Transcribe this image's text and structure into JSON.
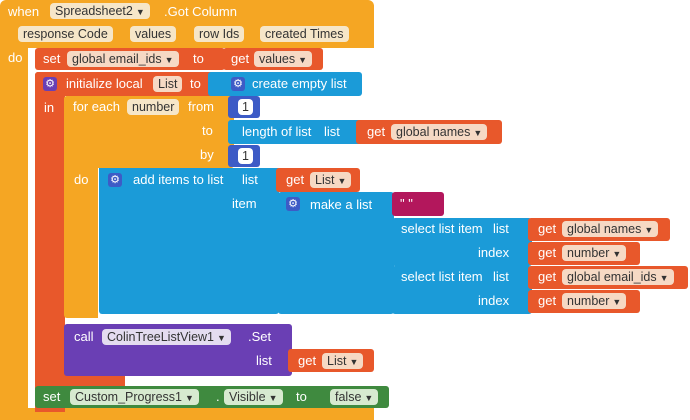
{
  "event": {
    "when": "when",
    "component": "Spreadsheet2",
    "event_name": ".Got Column",
    "params": [
      "response Code",
      "values",
      "row Ids",
      "created Times"
    ],
    "do": "do"
  },
  "set_global": {
    "set": "set",
    "var": "global email_ids",
    "to": "to",
    "get": "get",
    "value": "values"
  },
  "init_local": {
    "label": "initialize local",
    "var": "List",
    "to": "to",
    "create": "create empty list",
    "in": "in"
  },
  "for_each": {
    "label": "for each",
    "var": "number",
    "from": "from",
    "from_val": "1",
    "to": "to",
    "length_label": "length of list",
    "list_label": "list",
    "get": "get",
    "names": "global names",
    "by": "by",
    "by_val": "1",
    "do": "do"
  },
  "add_items": {
    "label": "add items to list",
    "list_label": "list",
    "get": "get",
    "list_var": "List",
    "item": "item",
    "make_list": "make a list",
    "string": "\"  \""
  },
  "select1": {
    "label": "select list item",
    "list_label": "list",
    "get": "get",
    "list": "global names",
    "index": "index",
    "index_var": "number"
  },
  "select2": {
    "label": "select list item",
    "list_label": "list",
    "get": "get",
    "list": "global email_ids",
    "index": "index",
    "index_var": "number"
  },
  "call": {
    "call": "call",
    "component": "ColinTreeListView1",
    "method": ".Set",
    "list": "list",
    "get": "get",
    "var": "List"
  },
  "set_visible": {
    "set": "set",
    "component": "Custom_Progress1",
    "dot": ".",
    "prop": "Visible",
    "to": "to",
    "value": "false"
  },
  "colors": {
    "control": "#f5a623",
    "variables": "#e8582b",
    "procedures_red": "#e8582b",
    "lists": "#1b9bd8",
    "math": "#3d5bc6",
    "component_call": "#6a3fb4",
    "component_set": "#3f8a3f",
    "text": "#b3175c"
  }
}
